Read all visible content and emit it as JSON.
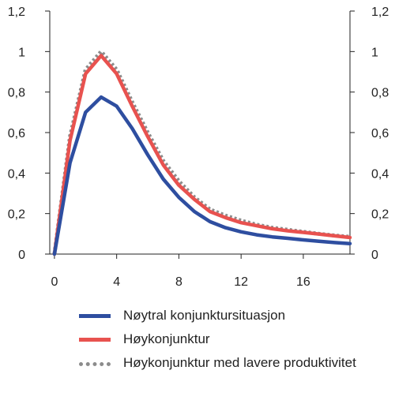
{
  "chart_data": {
    "type": "line",
    "x": [
      0,
      1,
      2,
      3,
      4,
      5,
      6,
      7,
      8,
      9,
      10,
      11,
      12,
      13,
      14,
      15,
      16,
      17,
      18,
      19
    ],
    "xticks": [
      0,
      4,
      8,
      12,
      16
    ],
    "xtick_labels": [
      "0",
      "4",
      "8",
      "12",
      "16"
    ],
    "xlim": [
      -0.3,
      19
    ],
    "yticks": [
      0,
      0.2,
      0.4,
      0.6,
      0.8,
      1.0,
      1.2
    ],
    "ytick_labels": [
      "0",
      "0,2",
      "0,4",
      "0,6",
      "0,8",
      "1",
      "1,2"
    ],
    "ylim": [
      0,
      1.2
    ],
    "grid": false,
    "legend_position": "bottom",
    "series": [
      {
        "name": "Nøytral konjunktursituasjon",
        "color": "#2e4ea0",
        "style": "solid",
        "values": [
          0,
          0.45,
          0.7,
          0.775,
          0.73,
          0.62,
          0.49,
          0.37,
          0.28,
          0.21,
          0.16,
          0.13,
          0.11,
          0.095,
          0.085,
          0.078,
          0.07,
          0.063,
          0.057,
          0.052
        ]
      },
      {
        "name": "Høykonjunktur",
        "color": "#e8524f",
        "style": "solid",
        "values": [
          0,
          0.56,
          0.89,
          0.98,
          0.89,
          0.73,
          0.58,
          0.44,
          0.34,
          0.27,
          0.21,
          0.18,
          0.155,
          0.14,
          0.125,
          0.115,
          0.107,
          0.099,
          0.09,
          0.082
        ]
      },
      {
        "name": "Høykonjunktur med lavere produktivitet",
        "color": "#8c8c8c",
        "style": "dotted",
        "values": [
          0,
          0.58,
          0.91,
          1.0,
          0.91,
          0.75,
          0.6,
          0.46,
          0.36,
          0.28,
          0.22,
          0.19,
          0.165,
          0.145,
          0.13,
          0.12,
          0.11,
          0.1,
          0.092,
          0.085
        ]
      }
    ]
  },
  "legend": {
    "items": [
      {
        "label": "Nøytral konjunktursituasjon",
        "color": "#2e4ea0",
        "style": "solid"
      },
      {
        "label": "Høykonjunktur",
        "color": "#e8524f",
        "style": "solid"
      },
      {
        "label": "Høykonjunktur med lavere produktivitet",
        "color": "#8c8c8c",
        "style": "dotted"
      }
    ]
  }
}
